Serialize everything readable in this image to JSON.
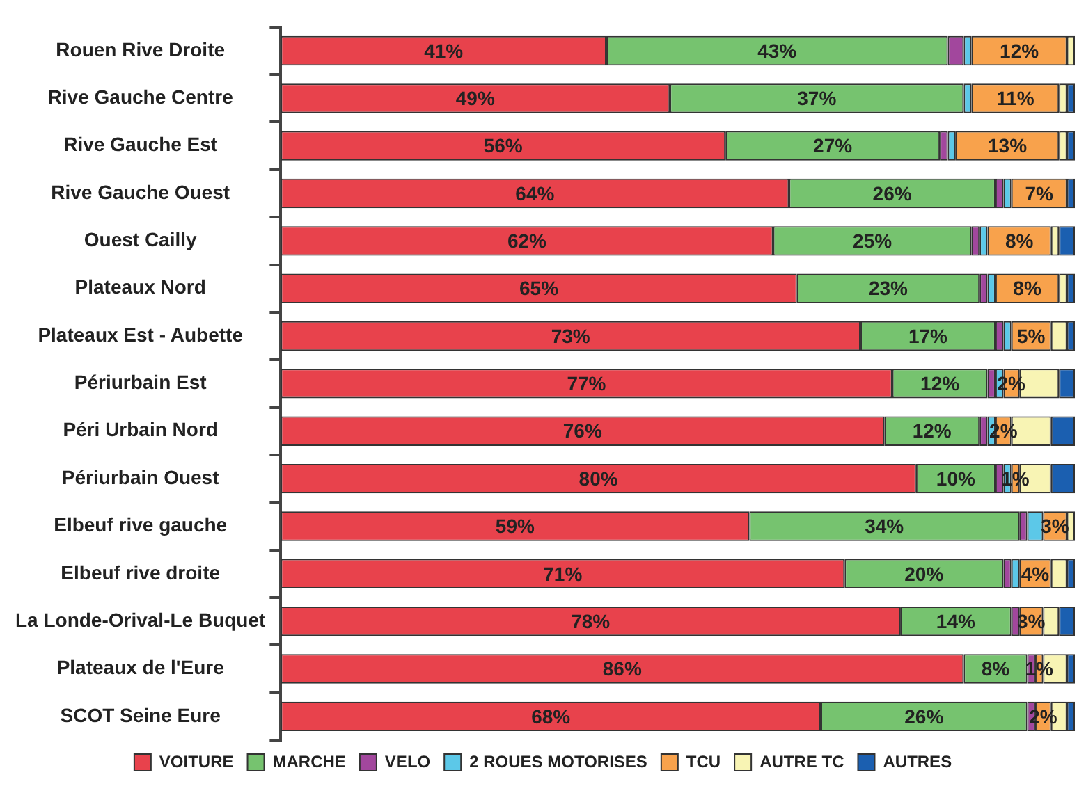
{
  "chart_data": {
    "type": "bar",
    "orientation": "horizontal",
    "stacked": true,
    "legend": "bottom",
    "grid": false,
    "categories": [
      "Rouen Rive Droite",
      "Rive Gauche Centre",
      "Rive Gauche Est",
      "Rive Gauche Ouest",
      "Ouest Cailly",
      "Plateaux Nord",
      "Plateaux Est - Aubette",
      "Périurbain Est",
      "Péri Urbain Nord",
      "Périurbain Ouest",
      "Elbeuf rive gauche",
      "Elbeuf rive droite",
      "La Londe-Orival-Le Buquet",
      "Plateaux de l'Eure",
      "SCOT Seine Eure"
    ],
    "series": [
      {
        "name": "VOITURE",
        "color": "#e8424c",
        "values": [
          41,
          49,
          56,
          64,
          62,
          65,
          73,
          77,
          76,
          80,
          59,
          71,
          78,
          86,
          68
        ],
        "value_labels": [
          "41%",
          "49%",
          "56%",
          "64%",
          "62%",
          "65%",
          "73%",
          "77%",
          "76%",
          "80%",
          "59%",
          "71%",
          "78%",
          "86%",
          "68%"
        ]
      },
      {
        "name": "MARCHE",
        "color": "#76c36f",
        "values": [
          43,
          37,
          27,
          26,
          25,
          23,
          17,
          12,
          12,
          10,
          34,
          20,
          14,
          8,
          26
        ],
        "value_labels": [
          "43%",
          "37%",
          "27%",
          "26%",
          "25%",
          "23%",
          "17%",
          "12%",
          "12%",
          "10%",
          "34%",
          "20%",
          "14%",
          "8%",
          "26%"
        ]
      },
      {
        "name": "VELO",
        "color": "#a2479d",
        "values": [
          2,
          0,
          1,
          1,
          1,
          1,
          1,
          1,
          1,
          1,
          1,
          1,
          1,
          1,
          1
        ]
      },
      {
        "name": "2 ROUES MOTORISES",
        "color": "#5cc8e8",
        "values": [
          1,
          1,
          1,
          1,
          1,
          1,
          1,
          1,
          1,
          1,
          2,
          1,
          0,
          0,
          0
        ]
      },
      {
        "name": "TCU",
        "color": "#f8a24c",
        "values": [
          12,
          11,
          13,
          7,
          8,
          8,
          5,
          2,
          2,
          1,
          3,
          4,
          3,
          1,
          2
        ],
        "value_labels": [
          "12%",
          "11%",
          "13%",
          "7%",
          "8%",
          "8%",
          "5%",
          "2%",
          "2%",
          "1%",
          "3%",
          "4%",
          "3%",
          "1%",
          "2%"
        ]
      },
      {
        "name": "AUTRE TC",
        "color": "#f8f4b4",
        "values": [
          1,
          1,
          1,
          0,
          1,
          1,
          2,
          5,
          5,
          4,
          1,
          2,
          2,
          3,
          2
        ]
      },
      {
        "name": "AUTRES",
        "color": "#1b5fb0",
        "values": [
          0,
          1,
          1,
          1,
          2,
          1,
          1,
          2,
          3,
          3,
          0,
          1,
          2,
          1,
          1
        ]
      }
    ]
  }
}
